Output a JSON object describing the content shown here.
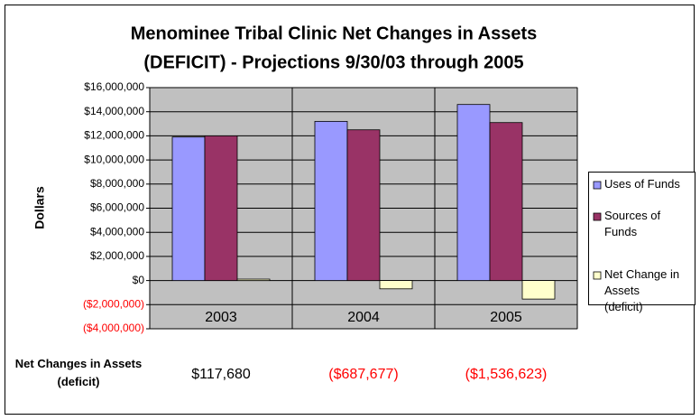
{
  "chart_data": {
    "type": "bar",
    "title": [
      "Menominee Tribal Clinic Net Changes in Assets",
      "(DEFICIT) - Projections 9/30/03 through 2005"
    ],
    "ylabel": "Dollars",
    "categories": [
      "2003",
      "2004",
      "2005"
    ],
    "series": [
      {
        "name": "Uses of Funds",
        "color": "#9999ff",
        "values": [
          11900000,
          13200000,
          14600000
        ]
      },
      {
        "name": "Sources of Funds",
        "color": "#993366",
        "values": [
          12000000,
          12500000,
          13100000
        ]
      },
      {
        "name": "Net Change in Assets (deficit)",
        "color": "#ffffcc",
        "values": [
          117680,
          -687677,
          -1536623
        ],
        "value_labels": [
          "$117,680",
          "($687,677)",
          "($1,536,623)"
        ]
      }
    ],
    "table_label": "Net Changes in Assets (deficit)",
    "ylim": [
      -4000000,
      16000000
    ],
    "yticks": [
      {
        "value": -4000000,
        "label": "($4,000,000)"
      },
      {
        "value": -2000000,
        "label": "($2,000,000)"
      },
      {
        "value": 0,
        "label": "$0"
      },
      {
        "value": 2000000,
        "label": "$2,000,000"
      },
      {
        "value": 4000000,
        "label": "$4,000,000"
      },
      {
        "value": 6000000,
        "label": "$6,000,000"
      },
      {
        "value": 8000000,
        "label": "$8,000,000"
      },
      {
        "value": 10000000,
        "label": "$10,000,000"
      },
      {
        "value": 12000000,
        "label": "$12,000,000"
      },
      {
        "value": 14000000,
        "label": "$14,000,000"
      },
      {
        "value": 16000000,
        "label": "$16,000,000"
      }
    ],
    "grid": true,
    "legend": "right",
    "negative_color": "#ff0000",
    "plot_background": "#c0c0c0"
  }
}
